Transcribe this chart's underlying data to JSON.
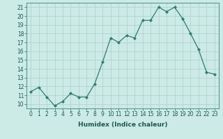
{
  "x": [
    0,
    1,
    2,
    3,
    4,
    5,
    6,
    7,
    8,
    9,
    10,
    11,
    12,
    13,
    14,
    15,
    16,
    17,
    18,
    19,
    20,
    21,
    22,
    23
  ],
  "y": [
    11.4,
    11.9,
    10.8,
    9.8,
    10.3,
    11.2,
    10.8,
    10.8,
    12.3,
    14.8,
    17.5,
    17.0,
    17.8,
    17.5,
    19.5,
    19.5,
    21.0,
    20.5,
    21.0,
    19.7,
    18.0,
    16.2,
    13.6,
    13.4
  ],
  "line_color": "#2d7d6e",
  "marker": "D",
  "markersize": 2,
  "linewidth": 0.9,
  "background_color": "#cceae6",
  "grid_color": "#b0d4ce",
  "xlabel": "Humidex (Indice chaleur)",
  "ylabel_ticks": [
    10,
    11,
    12,
    13,
    14,
    15,
    16,
    17,
    18,
    19,
    20,
    21
  ],
  "xlim": [
    -0.5,
    23.5
  ],
  "ylim": [
    9.5,
    21.5
  ],
  "xtick_labels": [
    "0",
    "1",
    "2",
    "3",
    "4",
    "5",
    "6",
    "7",
    "8",
    "9",
    "10",
    "11",
    "12",
    "13",
    "14",
    "15",
    "16",
    "17",
    "18",
    "19",
    "20",
    "21",
    "22",
    "23"
  ],
  "tick_fontsize": 5.5,
  "xlabel_fontsize": 6.5
}
